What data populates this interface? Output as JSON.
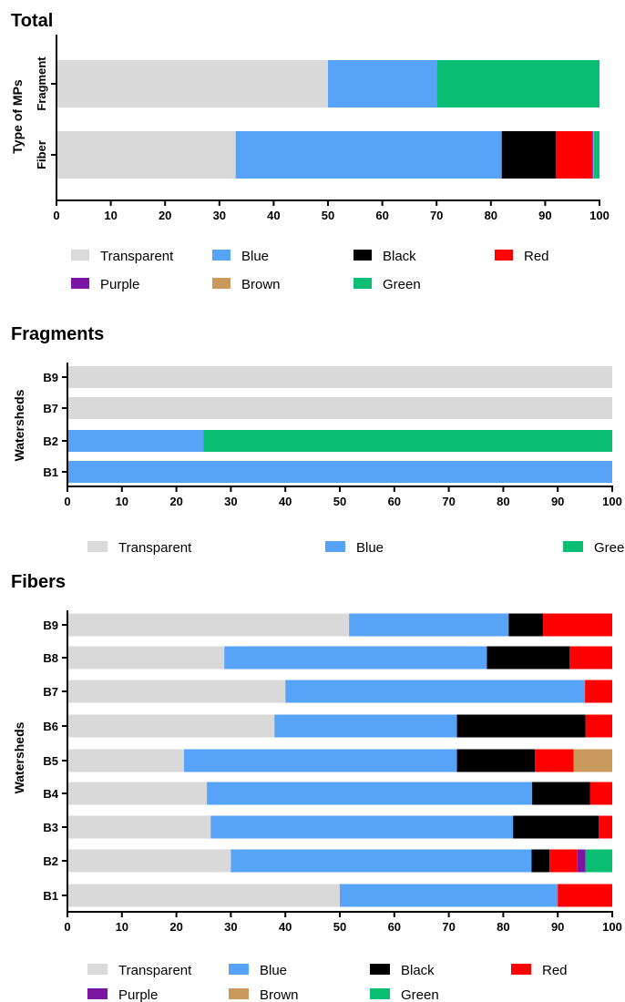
{
  "palette": {
    "Transparent": "#d9d9d9",
    "Blue": "#57a3f7",
    "Black": "#000000",
    "Red": "#ff0000",
    "Purple": "#7a16a3",
    "Brown": "#c99a5b",
    "Green": "#0abf73"
  },
  "chart_data": [
    {
      "type": "bar",
      "orientation": "horizontal",
      "stacked": true,
      "title": "Total",
      "ylabel": "Type of MPs",
      "xlabel": "",
      "xlim": [
        0,
        100
      ],
      "xticks": [
        0,
        10,
        20,
        30,
        40,
        50,
        60,
        70,
        80,
        90,
        100
      ],
      "categories": [
        "Fragment",
        "Fiber"
      ],
      "series": [
        {
          "name": "Transparent",
          "values": [
            50,
            33
          ]
        },
        {
          "name": "Blue",
          "values": [
            20,
            49
          ]
        },
        {
          "name": "Black",
          "values": [
            0,
            10
          ]
        },
        {
          "name": "Red",
          "values": [
            0,
            6.5
          ]
        },
        {
          "name": "Purple",
          "values": [
            0,
            0.3
          ]
        },
        {
          "name": "Brown",
          "values": [
            0,
            0.2
          ]
        },
        {
          "name": "Green",
          "values": [
            30,
            1
          ]
        }
      ],
      "legend": [
        "Transparent",
        "Blue",
        "Black",
        "Red",
        "Purple",
        "Brown",
        "Green"
      ],
      "legend_columns": 4
    },
    {
      "type": "bar",
      "orientation": "horizontal",
      "stacked": true,
      "title": "Fragments",
      "ylabel": "Watersheds",
      "xlabel": "",
      "xlim": [
        0,
        100
      ],
      "xticks": [
        0,
        10,
        20,
        30,
        40,
        50,
        60,
        70,
        80,
        90,
        100
      ],
      "categories": [
        "B9",
        "B7",
        "B2",
        "B1"
      ],
      "series": [
        {
          "name": "Transparent",
          "values": [
            100,
            100,
            0,
            0
          ]
        },
        {
          "name": "Blue",
          "values": [
            0,
            0,
            25,
            100
          ]
        },
        {
          "name": "Green",
          "values": [
            0,
            0,
            75,
            0
          ]
        }
      ],
      "legend": [
        "Transparent",
        "Blue",
        "Green"
      ],
      "legend_columns": 3
    },
    {
      "type": "bar",
      "orientation": "horizontal",
      "stacked": true,
      "title": "Fibers",
      "ylabel": "Watersheds",
      "xlabel": "",
      "xlim": [
        0,
        100
      ],
      "xticks": [
        0,
        10,
        20,
        30,
        40,
        50,
        60,
        70,
        80,
        90,
        100
      ],
      "categories": [
        "B9",
        "B8",
        "B7",
        "B6",
        "B5",
        "B4",
        "B3",
        "B2",
        "B1"
      ],
      "series": [
        {
          "name": "Transparent",
          "values": [
            51.7,
            28.8,
            40,
            38,
            21.4,
            25.6,
            26.3,
            30,
            50
          ]
        },
        {
          "name": "Blue",
          "values": [
            29.3,
            48.2,
            55,
            33.5,
            50.1,
            59.7,
            55.5,
            55.2,
            40
          ]
        },
        {
          "name": "Black",
          "values": [
            6.3,
            15.2,
            0,
            23.6,
            14.3,
            10.6,
            15.7,
            3.3,
            0
          ]
        },
        {
          "name": "Red",
          "values": [
            12.7,
            7.8,
            5,
            4.9,
            7.1,
            4.1,
            2.5,
            5.1,
            10
          ]
        },
        {
          "name": "Purple",
          "values": [
            0,
            0,
            0,
            0,
            0,
            0,
            0,
            1.5,
            0
          ]
        },
        {
          "name": "Brown",
          "values": [
            0,
            0,
            0,
            0,
            7.1,
            0,
            0,
            0,
            0
          ]
        },
        {
          "name": "Green",
          "values": [
            0,
            0,
            0,
            0,
            0,
            0,
            0,
            4.9,
            0
          ]
        }
      ],
      "legend": [
        "Transparent",
        "Blue",
        "Black",
        "Red",
        "Purple",
        "Brown",
        "Green"
      ],
      "legend_columns": 4
    }
  ]
}
